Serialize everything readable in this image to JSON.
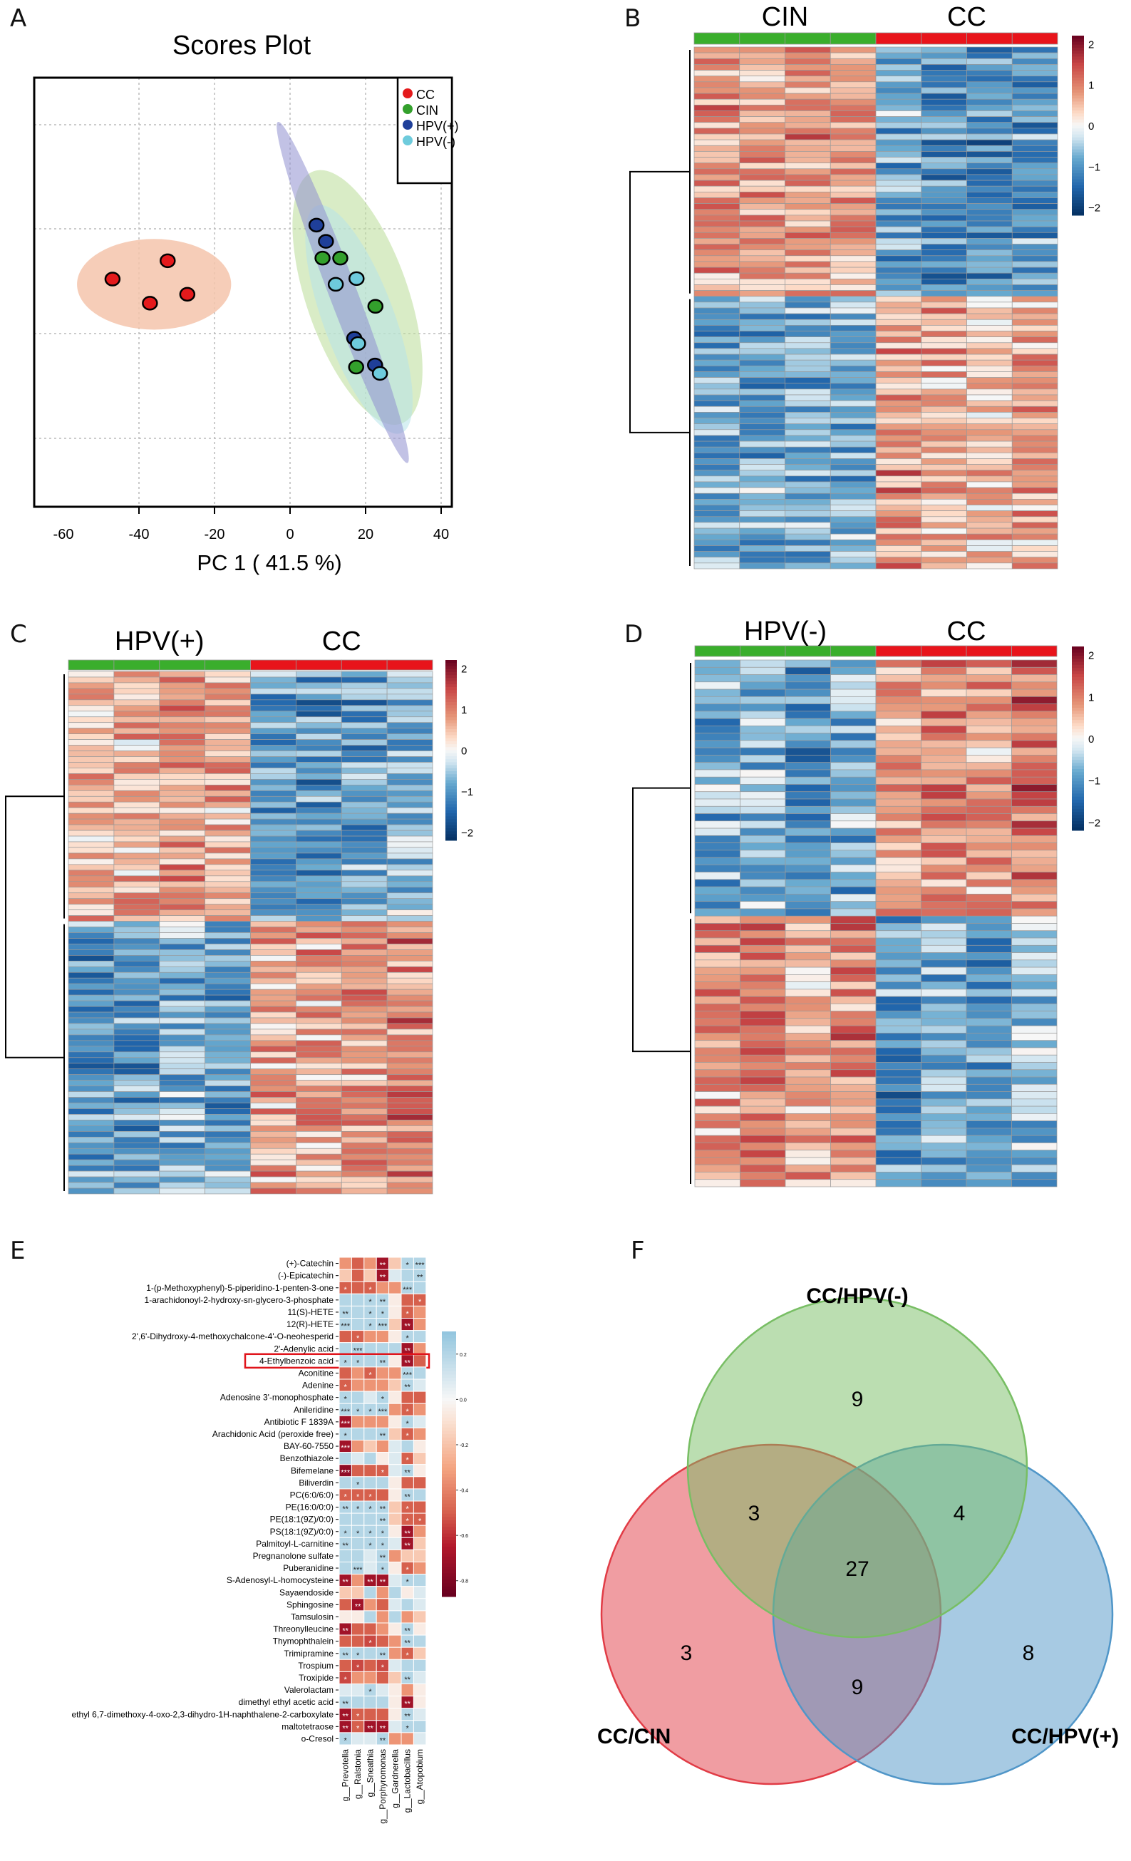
{
  "panels": {
    "A": "A",
    "B": "B",
    "C": "C",
    "D": "D",
    "E": "E",
    "F": "F"
  },
  "chart_data": [
    {
      "panel": "A",
      "type": "scatter",
      "title": "Scores Plot",
      "xlabel": "PC 1 ( 41.5 %)",
      "ylabel": "",
      "xticks": [
        -60,
        -40,
        -20,
        0,
        20,
        40
      ],
      "xlim": [
        -68,
        43
      ],
      "ylim": [
        -33,
        49
      ],
      "grid": true,
      "legend_position": "top-right",
      "series": [
        {
          "name": "CC",
          "color": "#e41a1c",
          "points": [
            [
              -47.0,
              10.4
            ],
            [
              -32.4,
              13.9
            ],
            [
              -37.1,
              5.8
            ],
            [
              -27.2,
              7.5
            ]
          ]
        },
        {
          "name": "CIN",
          "color": "#33a02c",
          "points": [
            [
              8.6,
              14.4
            ],
            [
              13.3,
              14.4
            ],
            [
              22.6,
              5.2
            ],
            [
              17.5,
              -6.4
            ]
          ]
        },
        {
          "name": "HPV(+)",
          "color": "#1f3f99",
          "points": [
            [
              7.0,
              20.7
            ],
            [
              9.5,
              17.6
            ],
            [
              17.0,
              -0.9
            ],
            [
              22.5,
              -6.0
            ]
          ]
        },
        {
          "name": "HPV(-)",
          "color": "#6ecbdc",
          "points": [
            [
              12.1,
              9.4
            ],
            [
              17.6,
              10.5
            ],
            [
              18.0,
              -1.9
            ],
            [
              23.8,
              -7.6
            ]
          ]
        }
      ],
      "ellipses": [
        {
          "group": "CIN",
          "color": "#b9dc98",
          "major_axis": [
            [
              6.3,
              31.0
            ],
            [
              29.4,
              -17.2
            ]
          ],
          "minor_half": 13.5
        },
        {
          "group": "HPV(-)",
          "color": "#b6e3ea",
          "major_axis": [
            [
              7.1,
              24.4
            ],
            [
              29.4,
              -19.0
            ]
          ],
          "minor_half": 9.4
        },
        {
          "group": "HPV(+)",
          "color": "#8f8fd0",
          "major_axis": [
            [
              -3.2,
              40.4
            ],
            [
              31.1,
              -24.7
            ]
          ],
          "minor_half": 3.7
        },
        {
          "group": "CC",
          "color": "#f5c4ac",
          "major_axis": [
            [
              -56.4,
              9.4
            ],
            [
              -15.6,
              9.4
            ]
          ],
          "minor_half": 12.0
        }
      ]
    },
    {
      "panel": "B",
      "type": "heatmap",
      "groups": [
        {
          "name": "CIN",
          "color": "#3aae2c",
          "samples": 4
        },
        {
          "name": "CC",
          "color": "#e8141b",
          "samples": 4
        }
      ],
      "rows": 90,
      "clusters": [
        {
          "fraction": 0.48,
          "group_means": [
            0.8,
            -1.0
          ]
        },
        {
          "fraction": 0.52,
          "group_means": [
            -0.8,
            0.7
          ]
        }
      ],
      "colorbar_ticks": [
        2,
        1,
        0,
        -1,
        -2
      ],
      "vlim": [
        -2.2,
        2.2
      ]
    },
    {
      "panel": "C",
      "type": "heatmap",
      "groups": [
        {
          "name": "HPV(+)",
          "color": "#3aae2c",
          "samples": 4
        },
        {
          "name": "CC",
          "color": "#e8141b",
          "samples": 4
        }
      ],
      "rows": 92,
      "clusters": [
        {
          "fraction": 0.48,
          "group_means": [
            0.8,
            -0.9
          ]
        },
        {
          "fraction": 0.52,
          "group_means": [
            -0.8,
            0.8
          ]
        }
      ],
      "colorbar_ticks": [
        2,
        1,
        0,
        -1,
        -2
      ],
      "vlim": [
        -2.2,
        2.2
      ]
    },
    {
      "panel": "D",
      "type": "heatmap",
      "groups": [
        {
          "name": "HPV(-)",
          "color": "#3aae2c",
          "samples": 4
        },
        {
          "name": "CC",
          "color": "#e8141b",
          "samples": 4
        }
      ],
      "rows": 72,
      "clusters": [
        {
          "fraction": 0.48,
          "group_means": [
            -0.8,
            0.9
          ]
        },
        {
          "fraction": 0.52,
          "group_means": [
            0.8,
            -0.9
          ]
        }
      ],
      "colorbar_ticks": [
        2,
        1,
        0,
        -1,
        -2
      ],
      "vlim": [
        -2.2,
        2.2
      ]
    },
    {
      "panel": "E",
      "type": "heatmap",
      "highlighted_row": "4-Ethylbenzoic acid",
      "columns": [
        "g__Prevotella",
        "g__Ralstonia",
        "g__Sneathia",
        "g__Porphyromonas",
        "g__Gardnerella",
        "g__Lactobacillus",
        "g__Atopobium"
      ],
      "rows": [
        "(+)-Catechin",
        "(-)-Epicatechin",
        "1-(p-Methoxyphenyl)-5-piperidino-1-penten-3-one",
        "1-arachidonoyl-2-hydroxy-sn-glycero-3-phosphate",
        "11(S)-HETE",
        "12(R)-HETE",
        "2',6'-Dihydroxy-4-methoxychalcone-4'-O-neohesperid",
        "2'-Adenylic acid",
        "4-Ethylbenzoic acid",
        "Aconitine",
        "Adenine",
        "Adenosine 3'-monophosphate",
        "Anileridine",
        "Antibiotic F 1839A",
        "Arachidonic Acid (peroxide free)",
        "BAY-60-7550",
        "Benzothiazole",
        "Bifemelane",
        "Biliverdin",
        "PC(6:0/6:0)",
        "PE(16:0/0:0)",
        "PE(18:1(9Z)/0:0)",
        "PS(18:1(9Z)/0:0)",
        "Palmitoyl-L-carnitine",
        "Pregnanolone sulfate",
        "Puberanidine",
        "S-Adenosyl-L-homocysteine",
        "Sayaendoside",
        "Sphingosine",
        "Tamsulosin",
        "Threonylleucine",
        "Thymophthalein",
        "Trimipramine",
        "Trospium",
        "Troxipide",
        "Valerolactam",
        "dimethyl ethyl acetic acid",
        "ethyl 6,7-dimethoxy-4-oxo-2,3-dihydro-1H-naphthalene-2-carboxylate",
        "maltotetraose",
        "o-Cresol"
      ],
      "values": [
        [
          -0.35,
          -0.5,
          -0.35,
          -0.7,
          -0.18,
          0.2,
          0.2
        ],
        [
          -0.18,
          -0.5,
          -0.18,
          -0.7,
          0.08,
          0.2,
          0.2
        ],
        [
          -0.5,
          -0.5,
          -0.5,
          -0.35,
          -0.35,
          0.2,
          0.2
        ],
        [
          0.2,
          0.2,
          0.2,
          0.2,
          -0.05,
          -0.5,
          -0.5
        ],
        [
          0.2,
          0.2,
          0.2,
          0.2,
          -0.05,
          -0.5,
          -0.35
        ],
        [
          0.2,
          0.2,
          0.2,
          0.2,
          -0.18,
          -0.7,
          -0.35
        ],
        [
          -0.5,
          -0.5,
          -0.35,
          -0.35,
          -0.05,
          0.2,
          0.2
        ],
        [
          0.2,
          0.2,
          0.2,
          0.2,
          0.2,
          -0.7,
          -0.35
        ],
        [
          0.2,
          0.2,
          0.2,
          0.2,
          -0.05,
          -0.7,
          -0.5
        ],
        [
          -0.5,
          -0.35,
          -0.5,
          -0.35,
          -0.35,
          0.2,
          0.2
        ],
        [
          -0.5,
          -0.35,
          -0.35,
          -0.35,
          -0.18,
          0.2,
          0.08
        ],
        [
          0.2,
          0.2,
          0.08,
          0.2,
          -0.05,
          -0.5,
          -0.5
        ],
        [
          0.2,
          0.2,
          0.2,
          0.2,
          -0.35,
          -0.5,
          -0.35
        ],
        [
          -0.7,
          -0.35,
          -0.35,
          -0.35,
          -0.05,
          0.2,
          0.08
        ],
        [
          0.2,
          0.2,
          0.2,
          0.2,
          -0.18,
          -0.5,
          -0.35
        ],
        [
          -0.7,
          -0.35,
          -0.18,
          -0.35,
          0.08,
          0.2,
          -0.05
        ],
        [
          0.2,
          0.08,
          0.2,
          -0.05,
          0.08,
          -0.5,
          -0.18
        ],
        [
          -0.75,
          -0.5,
          -0.5,
          -0.5,
          0.08,
          0.2,
          -0.05
        ],
        [
          0.2,
          0.2,
          0.2,
          0.2,
          -0.05,
          -0.5,
          -0.5
        ],
        [
          -0.5,
          -0.5,
          -0.5,
          -0.5,
          -0.05,
          0.2,
          0.2
        ],
        [
          0.2,
          0.2,
          0.2,
          0.2,
          -0.18,
          -0.5,
          -0.5
        ],
        [
          0.2,
          0.2,
          0.2,
          0.2,
          -0.18,
          -0.5,
          -0.5
        ],
        [
          0.2,
          0.2,
          0.2,
          0.2,
          -0.05,
          -0.7,
          -0.35
        ],
        [
          0.2,
          0.2,
          0.2,
          0.2,
          0.08,
          -0.7,
          -0.18
        ],
        [
          0.2,
          0.2,
          0.08,
          0.2,
          -0.35,
          -0.18,
          -0.18
        ],
        [
          0.2,
          0.2,
          0.08,
          0.2,
          -0.05,
          -0.5,
          -0.35
        ],
        [
          -0.7,
          -0.35,
          -0.7,
          -0.7,
          0.08,
          0.2,
          0.2
        ],
        [
          -0.18,
          -0.18,
          0.2,
          -0.35,
          0.2,
          -0.05,
          0.08
        ],
        [
          -0.5,
          -0.7,
          -0.35,
          -0.5,
          0.08,
          0.2,
          0.08
        ],
        [
          -0.05,
          -0.05,
          0.2,
          -0.35,
          0.2,
          -0.35,
          -0.18
        ],
        [
          -0.7,
          -0.5,
          -0.5,
          -0.35,
          -0.05,
          0.2,
          -0.05
        ],
        [
          -0.5,
          -0.5,
          -0.55,
          -0.5,
          -0.35,
          0.2,
          0.2
        ],
        [
          0.2,
          0.2,
          0.2,
          0.2,
          -0.35,
          -0.5,
          -0.18
        ],
        [
          -0.5,
          -0.55,
          -0.5,
          -0.55,
          0.08,
          0.2,
          0.2
        ],
        [
          -0.55,
          -0.35,
          -0.35,
          -0.5,
          -0.18,
          0.2,
          0.08
        ],
        [
          0.08,
          0.08,
          0.2,
          0.08,
          -0.05,
          -0.35,
          -0.05
        ],
        [
          0.2,
          0.2,
          0.2,
          0.2,
          -0.05,
          -0.7,
          -0.05
        ],
        [
          -0.7,
          -0.5,
          -0.5,
          -0.5,
          -0.05,
          0.2,
          0.08
        ],
        [
          -0.7,
          -0.5,
          -0.7,
          -0.7,
          0.08,
          0.2,
          0.2
        ],
        [
          0.2,
          0.08,
          0.08,
          0.2,
          -0.35,
          -0.35,
          0.08
        ]
      ],
      "stars": [
        [
          "",
          "",
          "",
          "**",
          "",
          "*",
          "***"
        ],
        [
          "",
          "",
          "",
          "**",
          "",
          "",
          "**"
        ],
        [
          "*",
          "",
          "*",
          "",
          "",
          "***",
          ""
        ],
        [
          "",
          "",
          "*",
          "**",
          "",
          "",
          "*"
        ],
        [
          "**",
          "",
          "*",
          "*",
          "",
          "*",
          ""
        ],
        [
          "***",
          "",
          "*",
          "***",
          "",
          "**",
          ""
        ],
        [
          "",
          "*",
          "",
          "",
          "",
          "*",
          ""
        ],
        [
          "",
          "***",
          "",
          "",
          "",
          "**",
          ""
        ],
        [
          "*",
          "*",
          "",
          "**",
          "",
          "**",
          ""
        ],
        [
          "",
          "",
          "*",
          "",
          "",
          "***",
          ""
        ],
        [
          "*",
          "",
          "",
          "",
          "",
          "**",
          ""
        ],
        [
          "*",
          "",
          "",
          "*",
          "",
          "",
          ""
        ],
        [
          "***",
          "*",
          "*",
          "***",
          "",
          "*",
          ""
        ],
        [
          "***",
          "",
          "",
          "",
          "",
          "*",
          ""
        ],
        [
          "*",
          "",
          "",
          "**",
          "",
          "*",
          ""
        ],
        [
          "***",
          "",
          "",
          "",
          "",
          "",
          ""
        ],
        [
          "",
          "",
          "",
          "",
          "",
          "*",
          ""
        ],
        [
          "***",
          "",
          "",
          "*",
          "",
          "**",
          ""
        ],
        [
          "",
          "*",
          "",
          "",
          "",
          "",
          ""
        ],
        [
          "*",
          "*",
          "*",
          "",
          "",
          "**",
          ""
        ],
        [
          "**",
          "*",
          "*",
          "**",
          "",
          "*",
          ""
        ],
        [
          "",
          "",
          "",
          "**",
          "",
          "*",
          "*"
        ],
        [
          "*",
          "*",
          "*",
          "*",
          "",
          "**",
          ""
        ],
        [
          "**",
          "",
          "*",
          "*",
          "",
          "**",
          ""
        ],
        [
          "",
          "",
          "",
          "**",
          "",
          "",
          ""
        ],
        [
          "",
          "***",
          "",
          "*",
          "",
          "*",
          ""
        ],
        [
          "**",
          "",
          "**",
          "**",
          "",
          "*",
          ""
        ],
        [
          "",
          "",
          "",
          "",
          "",
          "",
          ""
        ],
        [
          "",
          "**",
          "",
          "",
          "",
          "",
          ""
        ],
        [
          "",
          "",
          "",
          "",
          "",
          "",
          ""
        ],
        [
          "**",
          "",
          "",
          "",
          "",
          "**",
          ""
        ],
        [
          "",
          "",
          "*",
          "",
          "",
          "**",
          ""
        ],
        [
          "**",
          "*",
          "",
          "**",
          "",
          "*",
          ""
        ],
        [
          "",
          "*",
          "",
          "*",
          "",
          "",
          ""
        ],
        [
          "*",
          "",
          "",
          "",
          "",
          "**",
          ""
        ],
        [
          "",
          "",
          "*",
          "",
          "",
          "",
          ""
        ],
        [
          "**",
          "",
          "",
          "",
          "",
          "**",
          ""
        ],
        [
          "**",
          "*",
          "",
          "",
          "",
          "**",
          ""
        ],
        [
          "**",
          "*",
          "**",
          "**",
          "",
          "*",
          ""
        ],
        [
          "*",
          "",
          "",
          "**",
          "",
          "",
          ""
        ]
      ],
      "colorbar_ticks": [
        "0.2",
        "0.0",
        "-0.2",
        "-0.4",
        "-0.6",
        "-0.8"
      ],
      "vlim": [
        -0.87,
        0.3
      ]
    },
    {
      "panel": "F",
      "type": "venn",
      "sets": [
        {
          "name": "CC/HPV(-)",
          "color": "#78be64"
        },
        {
          "name": "CC/CIN",
          "color": "#e13c46"
        },
        {
          "name": "CC/HPV(+)",
          "color": "#5096c8"
        }
      ],
      "regions": {
        "HPV(-) only": "9",
        "CIN & HPV(-)": "3",
        "HPV(-) & HPV(+)": "4",
        "all three": "27",
        "CIN only": "3",
        "CIN & HPV(+)": "9",
        "HPV(+) only": "8"
      }
    }
  ]
}
